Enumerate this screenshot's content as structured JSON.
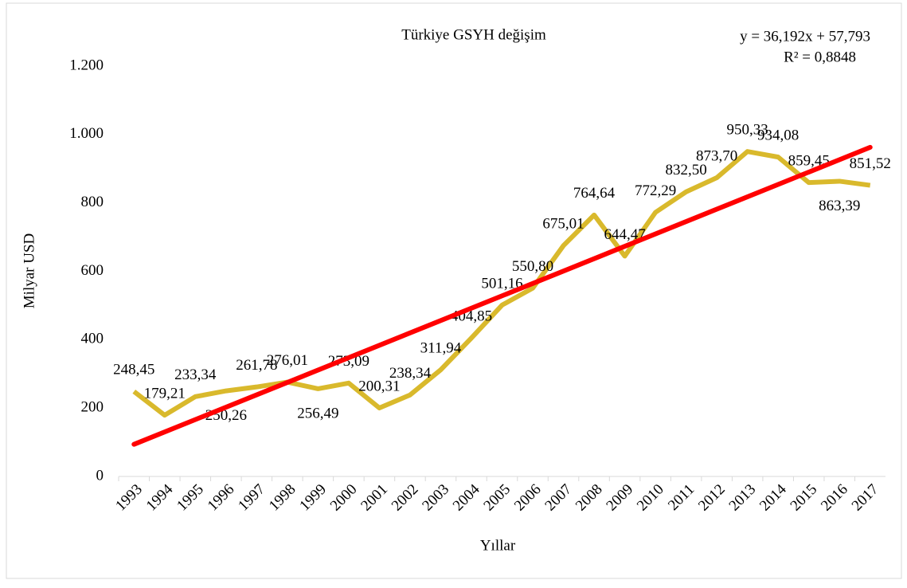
{
  "chart_data": {
    "type": "line",
    "title": "Türkiye GSYH değişim",
    "x_label": "Yıllar",
    "y_label": "Milyar USD",
    "categories": [
      "1993",
      "1994",
      "1995",
      "1996",
      "1997",
      "1998",
      "1999",
      "2000",
      "2001",
      "2002",
      "2003",
      "2004",
      "2005",
      "2006",
      "2007",
      "2008",
      "2009",
      "2010",
      "2011",
      "2012",
      "2013",
      "2014",
      "2015",
      "2016",
      "2017"
    ],
    "series": [
      {
        "name": "GSYH",
        "color": "#d9b92c",
        "values": [
          248.45,
          179.21,
          233.34,
          250.26,
          261.78,
          276.01,
          256.49,
          273.09,
          200.31,
          238.34,
          311.94,
          404.85,
          501.16,
          550.8,
          675.01,
          764.64,
          644.47,
          772.29,
          832.5,
          873.7,
          950.33,
          934.08,
          859.45,
          863.39,
          851.52
        ],
        "value_labels": [
          "248,45",
          "179,21",
          "233,34",
          "250,26",
          "261,78",
          "276,01",
          "256,49",
          "273,09",
          "200,31",
          "238,34",
          "311,94",
          "404,85",
          "501,16",
          "550,80",
          "675,01",
          "764,64",
          "644,47",
          "772,29",
          "832,50",
          "873,70",
          "950,33",
          "934,08",
          "859,45",
          "863,39",
          "851,52"
        ]
      }
    ],
    "trendline": {
      "color": "#ff0000",
      "slope": 36.192,
      "intercept": 57.793,
      "equation": "y = 36,192x + 57,793",
      "r2": "R² = 0,8848"
    },
    "ylim": [
      0,
      1200
    ],
    "yticks": [
      0,
      200,
      400,
      600,
      800,
      {
        "value": 1000,
        "label": "1.000"
      },
      {
        "value": 1200,
        "label": "1.200"
      }
    ]
  }
}
